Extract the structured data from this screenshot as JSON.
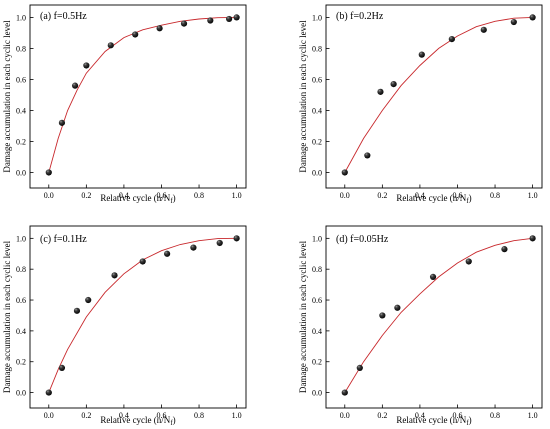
{
  "chart_data": [
    {
      "type": "scatter",
      "title": "(a) f=0.5Hz",
      "xlabel": "Relative cycle (n/N",
      "xlabel_sub": "f",
      "xlabel_close": ")",
      "ylabel": "Damage accumulation in each cyclic level",
      "xlim": [
        -0.1,
        1.05
      ],
      "ylim": [
        -0.1,
        1.08
      ],
      "xticks": [
        "0.0",
        "0.2",
        "0.4",
        "0.6",
        "0.8",
        "1.0"
      ],
      "yticks": [
        "0.0",
        "0.2",
        "0.4",
        "0.6",
        "0.8",
        "1.0"
      ],
      "points": [
        [
          0,
          0
        ],
        [
          0.07,
          0.32
        ],
        [
          0.14,
          0.56
        ],
        [
          0.2,
          0.69
        ],
        [
          0.33,
          0.82
        ],
        [
          0.46,
          0.89
        ],
        [
          0.59,
          0.93
        ],
        [
          0.72,
          0.96
        ],
        [
          0.86,
          0.98
        ],
        [
          0.96,
          0.99
        ],
        [
          1.0,
          1.0
        ]
      ],
      "fit": [
        [
          0,
          0
        ],
        [
          0.05,
          0.22
        ],
        [
          0.1,
          0.4
        ],
        [
          0.15,
          0.53
        ],
        [
          0.2,
          0.64
        ],
        [
          0.3,
          0.78
        ],
        [
          0.4,
          0.87
        ],
        [
          0.5,
          0.92
        ],
        [
          0.6,
          0.95
        ],
        [
          0.7,
          0.975
        ],
        [
          0.8,
          0.99
        ],
        [
          0.9,
          0.998
        ],
        [
          1.0,
          1.0
        ]
      ]
    },
    {
      "type": "scatter",
      "title": "(b) f=0.2Hz",
      "xlabel": "Relative cycle (n/N",
      "xlabel_sub": "f",
      "xlabel_close": ")",
      "ylabel": "Damage accumulation in each cyclic level",
      "xlim": [
        -0.1,
        1.05
      ],
      "ylim": [
        -0.1,
        1.08
      ],
      "xticks": [
        "0.0",
        "0.2",
        "0.4",
        "0.6",
        "0.8",
        "1.0"
      ],
      "yticks": [
        "0.0",
        "0.2",
        "0.4",
        "0.6",
        "0.8",
        "1.0"
      ],
      "points": [
        [
          0,
          0
        ],
        [
          0.12,
          0.11
        ],
        [
          0.19,
          0.52
        ],
        [
          0.26,
          0.57
        ],
        [
          0.41,
          0.76
        ],
        [
          0.57,
          0.86
        ],
        [
          0.74,
          0.92
        ],
        [
          0.9,
          0.97
        ],
        [
          1.0,
          1.0
        ]
      ],
      "fit": [
        [
          0,
          0
        ],
        [
          0.1,
          0.22
        ],
        [
          0.2,
          0.4
        ],
        [
          0.3,
          0.56
        ],
        [
          0.4,
          0.69
        ],
        [
          0.5,
          0.8
        ],
        [
          0.6,
          0.88
        ],
        [
          0.7,
          0.94
        ],
        [
          0.8,
          0.975
        ],
        [
          0.9,
          0.995
        ],
        [
          1.0,
          1.0
        ]
      ]
    },
    {
      "type": "scatter",
      "title": "(c) f=0.1Hz",
      "xlabel": "Relative cycle (n/N",
      "xlabel_sub": "f",
      "xlabel_close": ")",
      "ylabel": "Damage accumulation in each cyclic level",
      "xlim": [
        -0.1,
        1.05
      ],
      "ylim": [
        -0.1,
        1.08
      ],
      "xticks": [
        "0.0",
        "0.2",
        "0.4",
        "0.6",
        "0.8",
        "1.0"
      ],
      "yticks": [
        "0.0",
        "0.2",
        "0.4",
        "0.6",
        "0.8",
        "1.0"
      ],
      "points": [
        [
          0,
          0
        ],
        [
          0.07,
          0.16
        ],
        [
          0.15,
          0.53
        ],
        [
          0.21,
          0.6
        ],
        [
          0.35,
          0.76
        ],
        [
          0.5,
          0.85
        ],
        [
          0.63,
          0.9
        ],
        [
          0.77,
          0.94
        ],
        [
          0.91,
          0.97
        ],
        [
          1.0,
          1.0
        ]
      ],
      "fit": [
        [
          0,
          0
        ],
        [
          0.05,
          0.15
        ],
        [
          0.1,
          0.28
        ],
        [
          0.2,
          0.49
        ],
        [
          0.3,
          0.65
        ],
        [
          0.4,
          0.77
        ],
        [
          0.5,
          0.86
        ],
        [
          0.6,
          0.92
        ],
        [
          0.7,
          0.96
        ],
        [
          0.8,
          0.985
        ],
        [
          0.9,
          0.998
        ],
        [
          1.0,
          1.0
        ]
      ]
    },
    {
      "type": "scatter",
      "title": "(d) f=0.05Hz",
      "xlabel": "Relative cycle (n/N",
      "xlabel_sub": "f",
      "xlabel_close": ")",
      "ylabel": "Damage accumulation in each cyclic level",
      "xlim": [
        -0.1,
        1.05
      ],
      "ylim": [
        -0.1,
        1.08
      ],
      "xticks": [
        "0.0",
        "0.2",
        "0.4",
        "0.6",
        "0.8",
        "1.0"
      ],
      "yticks": [
        "0.0",
        "0.2",
        "0.4",
        "0.6",
        "0.8",
        "1.0"
      ],
      "points": [
        [
          0,
          0
        ],
        [
          0.08,
          0.16
        ],
        [
          0.2,
          0.5
        ],
        [
          0.28,
          0.55
        ],
        [
          0.47,
          0.75
        ],
        [
          0.66,
          0.85
        ],
        [
          0.85,
          0.93
        ],
        [
          1.0,
          1.0
        ]
      ],
      "fit": [
        [
          0,
          0
        ],
        [
          0.1,
          0.2
        ],
        [
          0.2,
          0.37
        ],
        [
          0.3,
          0.52
        ],
        [
          0.4,
          0.64
        ],
        [
          0.5,
          0.75
        ],
        [
          0.6,
          0.84
        ],
        [
          0.7,
          0.91
        ],
        [
          0.8,
          0.955
        ],
        [
          0.9,
          0.985
        ],
        [
          1.0,
          1.0
        ]
      ]
    }
  ],
  "colors": {
    "fit_curve": "#c8282c",
    "marker": "#111111"
  }
}
